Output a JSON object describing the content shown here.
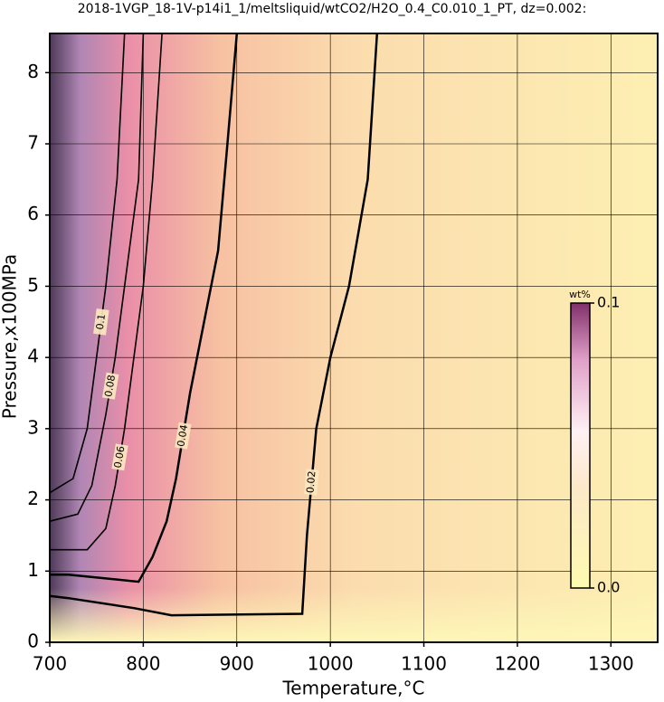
{
  "chart_data": {
    "type": "contour",
    "title": "2018-1VGP_18-1V-p14i1_1/meltsliquid/wtCO2/H2O_0.4_C0.010_1_PT, dz=0.002:",
    "x_label": "Temperature,°C",
    "y_label": "Pressure,x100MPa",
    "xlim": [
      700,
      1350
    ],
    "ylim": [
      0,
      8.55
    ],
    "xticks": [
      700,
      800,
      900,
      1000,
      1100,
      1200,
      1300
    ],
    "yticks": [
      0,
      1,
      2,
      3,
      4,
      5,
      6,
      7,
      8
    ],
    "grid": true,
    "series": [
      {
        "name": "0.02",
        "color": "#000000",
        "x": [
          1050,
          1040,
          1020,
          1000,
          985,
          975,
          970,
          830,
          790,
          720,
          700
        ],
        "values": [
          8.55,
          6.5,
          5,
          4,
          3,
          1.5,
          0.4,
          0.38,
          0.48,
          0.62,
          0.65
        ]
      },
      {
        "name": "0.04",
        "color": "#000000",
        "x": [
          900,
          890,
          880,
          865,
          850,
          835,
          825,
          810,
          795,
          720,
          700
        ],
        "values": [
          8.55,
          7,
          5.5,
          4.5,
          3.5,
          2.3,
          1.7,
          1.2,
          0.85,
          0.95,
          0.95
        ]
      },
      {
        "name": "0.06",
        "color": "#000000",
        "x": [
          820,
          810,
          800,
          790,
          780,
          770,
          760,
          740,
          720,
          700
        ],
        "values": [
          8.55,
          6.5,
          5,
          4,
          3,
          2.2,
          1.6,
          1.3,
          1.3,
          1.3
        ]
      },
      {
        "name": "0.08",
        "color": "#000000",
        "x": [
          800,
          795,
          780,
          770,
          760,
          745,
          730,
          700
        ],
        "values": [
          8.55,
          6.5,
          5,
          4,
          3.2,
          2.2,
          1.8,
          1.7
        ]
      },
      {
        "name": "0.1",
        "color": "#000000",
        "x": [
          780,
          772,
          760,
          750,
          740,
          725,
          700
        ],
        "values": [
          8.55,
          6.5,
          5,
          4,
          3,
          2.3,
          2.1
        ]
      }
    ],
    "colorbar": {
      "label": "wt%",
      "lim": [
        0,
        0.1
      ],
      "ticks": [
        {
          "value": 0,
          "label": "0.0"
        },
        0.1
      ]
    }
  }
}
